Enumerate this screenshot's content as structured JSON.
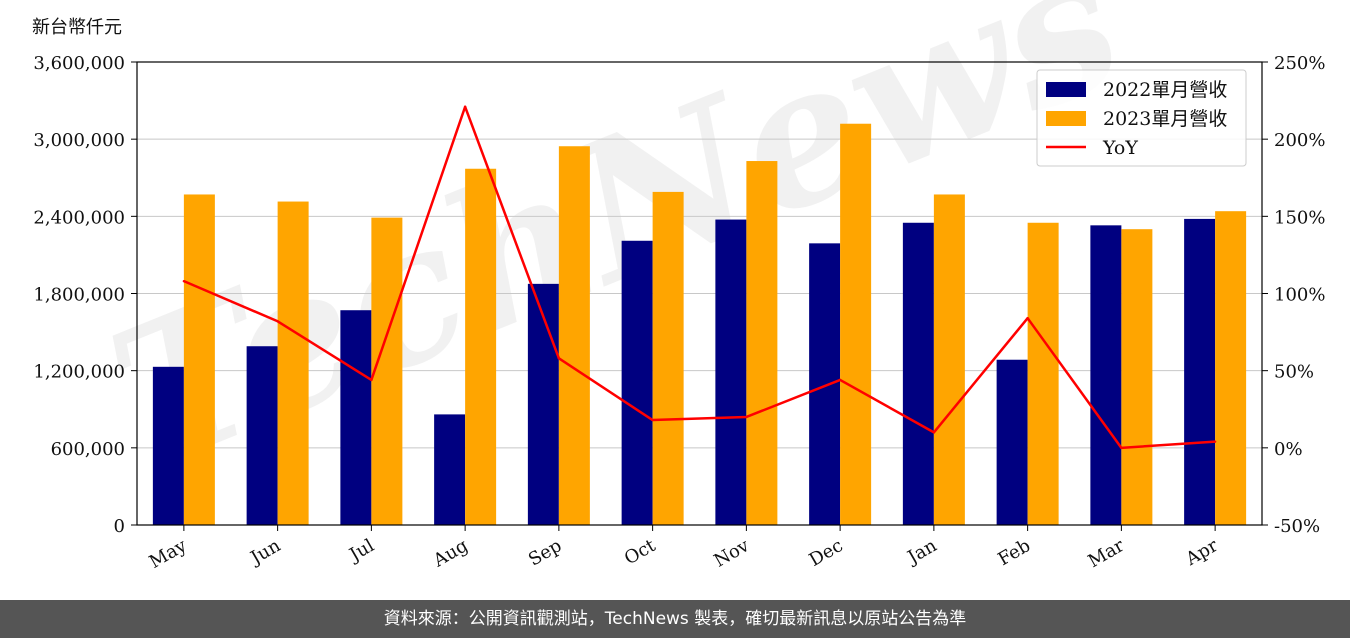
{
  "chart_data": {
    "type": "bar",
    "unit_label": "新台幣仟元",
    "categories": [
      "May",
      "Jun",
      "Jul",
      "Aug",
      "Sep",
      "Oct",
      "Nov",
      "Dec",
      "Jan",
      "Feb",
      "Mar",
      "Apr"
    ],
    "series": [
      {
        "name": "2022單月營收",
        "type": "bar",
        "color": "#000080",
        "values": [
          1230000,
          1390000,
          1670000,
          860000,
          1875000,
          2210000,
          2375000,
          2190000,
          2350000,
          1285000,
          2330000,
          2380000
        ]
      },
      {
        "name": "2023單月營收",
        "type": "bar",
        "color": "#FFA500",
        "values": [
          2570000,
          2515000,
          2390000,
          2770000,
          2945000,
          2590000,
          2830000,
          3120000,
          2570000,
          2350000,
          2300000,
          2440000
        ]
      },
      {
        "name": "YoY",
        "type": "line",
        "color": "#FF0000",
        "axis": "right",
        "values": [
          108,
          82,
          44,
          221,
          58,
          18,
          20,
          44,
          10,
          84,
          0,
          4
        ]
      }
    ],
    "ylim": [
      0,
      3600000
    ],
    "yticks": [
      "0",
      "600,000",
      "1,200,000",
      "1,800,000",
      "2,400,000",
      "3,000,000",
      "3,600,000"
    ],
    "y2lim": [
      -50,
      250
    ],
    "y2ticks": [
      "-50%",
      "0%",
      "50%",
      "100%",
      "150%",
      "200%",
      "250%"
    ],
    "grid": true,
    "legend": "top-right"
  },
  "watermark": "TechNews",
  "footer": {
    "source": "資料來源：公開資訊觀測站，TechNews 製表，確切最新訊息以原站公告為準"
  }
}
